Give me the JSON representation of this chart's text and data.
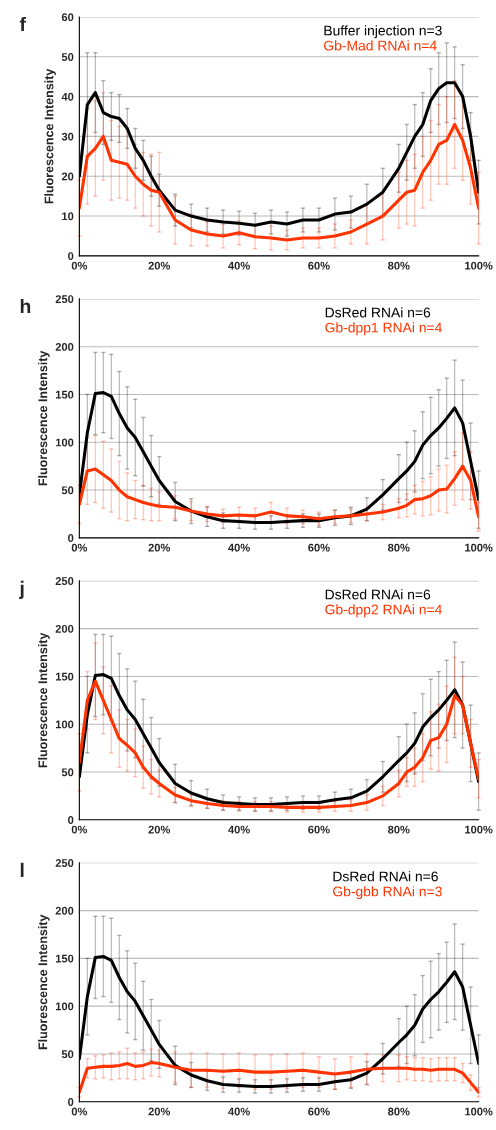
{
  "chart_data": [
    {
      "type": "line",
      "title": "f",
      "ylabel": "Fluorescence Intensity",
      "x": [
        0,
        2,
        4,
        6,
        8,
        10,
        12,
        14,
        16,
        18,
        20,
        24,
        28,
        32,
        36,
        40,
        44,
        48,
        52,
        56,
        60,
        64,
        68,
        72,
        76,
        80,
        82,
        84,
        86,
        88,
        90,
        92,
        94,
        96,
        98,
        100
      ],
      "xlim": [
        0,
        100
      ],
      "xticks": [
        {
          "value": 0,
          "label": "0%"
        },
        {
          "value": 20,
          "label": "20%"
        },
        {
          "value": 40,
          "label": "40%"
        },
        {
          "value": 60,
          "label": "60%"
        },
        {
          "value": 80,
          "label": "80%"
        },
        {
          "value": 100,
          "label": "100%"
        }
      ],
      "ylim": [
        0,
        60
      ],
      "yticks": [
        0,
        10,
        20,
        30,
        40,
        50,
        60
      ],
      "grid": "y",
      "legend": "top right",
      "series": [
        {
          "name": "Buffer injection n=3",
          "color": "#000000",
          "values": [
            20,
            38,
            41,
            36,
            35,
            34.5,
            32,
            27,
            24,
            20,
            16.5,
            11.5,
            10,
            9,
            8.5,
            8.2,
            7.7,
            8.5,
            8,
            9,
            9,
            10.5,
            11,
            13,
            16,
            22,
            26,
            30,
            33,
            39,
            42,
            43.5,
            43.5,
            40,
            30,
            16
          ],
          "errors": [
            null,
            13,
            10,
            8,
            6,
            6,
            5,
            5,
            5,
            5,
            4,
            4,
            3,
            3,
            3,
            3,
            3,
            3,
            3,
            3,
            3,
            4,
            4,
            5,
            6,
            6,
            7,
            8,
            8,
            8,
            9,
            10,
            9,
            8,
            6,
            8
          ]
        },
        {
          "name": "Gb-Mad RNAi n=4",
          "color": "#ff3300",
          "values": [
            12,
            25,
            27,
            30,
            24,
            23.5,
            23,
            20,
            18,
            16.5,
            16,
            9,
            6.5,
            5.5,
            5,
            5.8,
            4.8,
            4.5,
            4,
            4.5,
            4.5,
            5,
            6,
            8,
            10,
            14,
            16,
            16.5,
            21,
            24,
            28,
            29,
            33,
            29,
            22,
            12
          ],
          "errors": [
            7,
            12,
            12,
            11,
            10,
            9,
            9,
            8,
            8,
            9,
            10,
            6,
            4,
            3,
            3,
            3,
            3,
            3,
            2.5,
            2.5,
            2.5,
            3,
            3,
            5,
            6,
            7,
            8,
            9,
            9,
            10,
            10,
            11,
            11,
            10,
            9,
            9
          ]
        }
      ]
    },
    {
      "type": "line",
      "title": "h",
      "ylabel": "Fluorescence Intensity",
      "x": [
        0,
        2,
        4,
        6,
        8,
        10,
        12,
        14,
        16,
        18,
        20,
        24,
        28,
        32,
        36,
        40,
        44,
        48,
        52,
        56,
        60,
        64,
        68,
        72,
        76,
        80,
        82,
        84,
        86,
        88,
        90,
        92,
        94,
        96,
        98,
        100
      ],
      "xlim": [
        0,
        100
      ],
      "xticks": [
        {
          "value": 0,
          "label": "0%"
        },
        {
          "value": 20,
          "label": "20%"
        },
        {
          "value": 40,
          "label": "40%"
        },
        {
          "value": 60,
          "label": "60%"
        },
        {
          "value": 80,
          "label": "80%"
        },
        {
          "value": 100,
          "label": "100%"
        }
      ],
      "ylim": [
        0,
        250
      ],
      "yticks": [
        0,
        50,
        100,
        150,
        200,
        250
      ],
      "grid": "y",
      "legend": "top right",
      "series": [
        {
          "name": "DsRed RNAi n=6",
          "color": "#000000",
          "values": [
            45,
            110,
            151,
            152,
            148,
            130,
            115,
            105,
            90,
            75,
            60,
            38,
            28,
            22,
            18,
            17,
            16,
            16,
            17,
            18,
            18,
            21,
            23,
            30,
            45,
            62,
            70,
            80,
            97,
            107,
            115,
            125,
            136,
            120,
            80,
            40
          ],
          "errors": [
            null,
            40,
            43,
            42,
            44,
            44,
            43,
            40,
            36,
            32,
            25,
            20,
            13,
            10,
            8,
            7,
            7,
            7,
            7,
            7,
            7,
            8,
            9,
            12,
            16,
            25,
            30,
            32,
            35,
            40,
            40,
            42,
            50,
            45,
            40,
            30
          ]
        },
        {
          "name": "Gb-dpp1 RNAi n=4",
          "color": "#ff3300",
          "values": [
            35,
            70,
            72,
            66,
            60,
            50,
            43,
            40,
            37,
            35,
            33,
            32,
            28,
            25,
            23,
            24,
            23,
            27,
            23,
            22,
            20,
            22,
            23,
            25,
            27,
            31,
            34,
            40,
            41,
            44,
            50,
            51,
            62,
            75,
            60,
            22
          ],
          "errors": [
            20,
            35,
            35,
            35,
            33,
            30,
            25,
            20,
            18,
            17,
            15,
            12,
            10,
            8,
            7,
            8,
            8,
            10,
            8,
            7,
            7,
            7,
            7,
            7,
            8,
            10,
            12,
            15,
            18,
            20,
            22,
            25,
            28,
            35,
            30,
            15
          ]
        }
      ]
    },
    {
      "type": "line",
      "title": "j",
      "ylabel": "Fluorescence Intensity",
      "x": [
        0,
        2,
        4,
        6,
        8,
        10,
        12,
        14,
        16,
        18,
        20,
        24,
        28,
        32,
        36,
        40,
        44,
        48,
        52,
        56,
        60,
        64,
        68,
        72,
        76,
        80,
        82,
        84,
        86,
        88,
        90,
        92,
        94,
        96,
        98,
        100
      ],
      "xlim": [
        0,
        100
      ],
      "xticks": [
        {
          "value": 0,
          "label": "0%"
        },
        {
          "value": 20,
          "label": "20%"
        },
        {
          "value": 40,
          "label": "40%"
        },
        {
          "value": 60,
          "label": "60%"
        },
        {
          "value": 80,
          "label": "80%"
        },
        {
          "value": 100,
          "label": "100%"
        }
      ],
      "ylim": [
        0,
        250
      ],
      "yticks": [
        0,
        50,
        100,
        150,
        200,
        250
      ],
      "grid": "y",
      "legend": "top right",
      "series": [
        {
          "name": "DsRed RNAi n=6",
          "color": "#000000",
          "values": [
            45,
            110,
            151,
            152,
            148,
            130,
            115,
            105,
            90,
            75,
            60,
            38,
            28,
            22,
            18,
            17,
            16,
            16,
            17,
            18,
            18,
            21,
            23,
            30,
            45,
            62,
            70,
            80,
            97,
            107,
            115,
            125,
            136,
            120,
            80,
            40
          ],
          "errors": [
            null,
            40,
            43,
            42,
            44,
            44,
            43,
            40,
            36,
            32,
            25,
            20,
            13,
            10,
            8,
            7,
            7,
            7,
            7,
            7,
            7,
            8,
            9,
            12,
            16,
            25,
            30,
            32,
            35,
            40,
            40,
            42,
            50,
            45,
            40,
            30
          ]
        },
        {
          "name": "Gb-dpp2 RNAi n=4",
          "color": "#ff3300",
          "values": [
            60,
            125,
            145,
            125,
            105,
            85,
            78,
            70,
            55,
            45,
            38,
            26,
            20,
            17,
            15,
            14,
            14,
            14,
            13,
            13,
            13,
            14,
            15,
            18,
            25,
            38,
            50,
            55,
            65,
            83,
            86,
            100,
            130,
            120,
            80,
            43
          ],
          "errors": [
            30,
            30,
            40,
            35,
            35,
            30,
            27,
            25,
            22,
            18,
            14,
            8,
            6,
            5,
            5,
            5,
            5,
            5,
            5,
            5,
            5,
            5,
            6,
            8,
            10,
            14,
            15,
            20,
            25,
            30,
            35,
            40,
            40,
            30,
            25,
            20
          ]
        }
      ]
    },
    {
      "type": "line",
      "title": "l",
      "ylabel": "Fluorescence Intensity",
      "x": [
        0,
        2,
        4,
        6,
        8,
        10,
        12,
        14,
        16,
        18,
        20,
        24,
        28,
        32,
        36,
        40,
        44,
        48,
        52,
        56,
        60,
        64,
        68,
        72,
        76,
        80,
        82,
        84,
        86,
        88,
        90,
        92,
        94,
        96,
        98,
        100
      ],
      "xlim": [
        0,
        100
      ],
      "xticks": [
        {
          "value": 0,
          "label": "0%"
        },
        {
          "value": 20,
          "label": "20%"
        },
        {
          "value": 40,
          "label": "40%"
        },
        {
          "value": 60,
          "label": "60%"
        },
        {
          "value": 80,
          "label": "80%"
        },
        {
          "value": 100,
          "label": "100%"
        }
      ],
      "ylim": [
        0,
        250
      ],
      "yticks": [
        0,
        50,
        100,
        150,
        200,
        250
      ],
      "grid": "y",
      "legend": "top right",
      "series": [
        {
          "name": "DsRed RNAi n=6",
          "color": "#000000",
          "values": [
            45,
            110,
            151,
            152,
            148,
            130,
            115,
            105,
            90,
            75,
            60,
            38,
            28,
            22,
            18,
            17,
            16,
            16,
            17,
            18,
            18,
            21,
            23,
            30,
            45,
            62,
            70,
            80,
            97,
            107,
            115,
            125,
            136,
            120,
            80,
            40
          ],
          "errors": [
            null,
            40,
            43,
            42,
            44,
            44,
            43,
            40,
            36,
            32,
            25,
            20,
            13,
            10,
            8,
            7,
            7,
            7,
            7,
            7,
            7,
            8,
            9,
            12,
            16,
            25,
            30,
            32,
            35,
            40,
            40,
            42,
            50,
            45,
            40,
            30
          ]
        },
        {
          "name": "Gb-gbb RNAi n=3",
          "color": "#ff3300",
          "values": [
            10,
            35,
            36,
            37,
            37,
            38,
            40,
            37,
            38,
            41,
            40,
            36,
            33,
            33,
            32,
            33,
            31,
            31,
            32,
            33,
            31,
            29,
            31,
            34,
            35,
            35,
            35,
            34,
            34,
            33,
            34,
            34,
            34,
            30,
            20,
            10
          ],
          "errors": [
            5,
            10,
            12,
            12,
            14,
            14,
            16,
            14,
            14,
            14,
            14,
            16,
            18,
            18,
            18,
            18,
            18,
            18,
            18,
            18,
            16,
            16,
            16,
            16,
            14,
            14,
            12,
            12,
            12,
            12,
            12,
            12,
            12,
            10,
            8,
            5
          ]
        }
      ]
    }
  ]
}
